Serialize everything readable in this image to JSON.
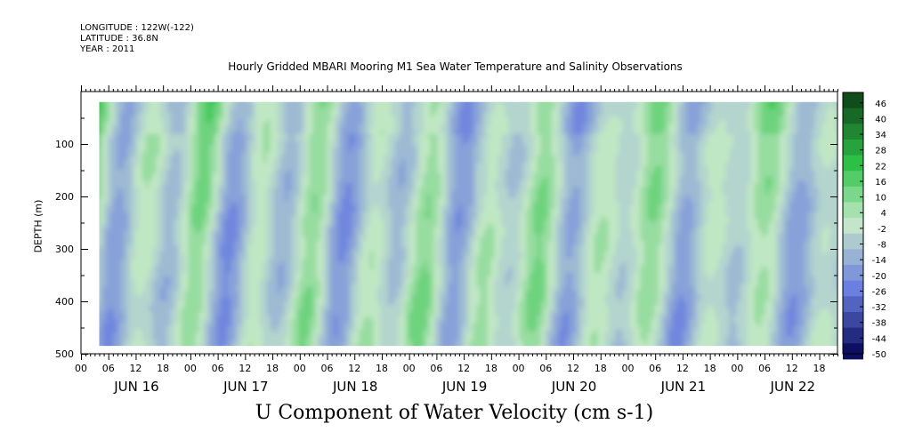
{
  "header": {
    "longitude": "LONGITUDE : 122W(-122)",
    "latitude": "LATITUDE : 36.8N",
    "year": "YEAR : 2011"
  },
  "chart_data": {
    "type": "heatmap",
    "title": "Hourly Gridded MBARI Mooring M1 Sea Water Temperature and Salinity Observations",
    "xlabel": "U Component of Water Velocity (cm s-1)",
    "ylabel": "DEPTH (m)",
    "x_tick_labels": [
      "00",
      "06",
      "12",
      "18",
      "00",
      "06",
      "12",
      "18",
      "00",
      "06",
      "12",
      "18",
      "00",
      "06",
      "12",
      "18",
      "00",
      "06",
      "12",
      "18",
      "00",
      "06",
      "12",
      "18",
      "00",
      "06",
      "12",
      "18"
    ],
    "x_day_labels": [
      "JUN 16",
      "JUN 17",
      "JUN 18",
      "JUN 19",
      "JUN 20",
      "JUN 21",
      "JUN 22"
    ],
    "x_range_hours": [
      0,
      166
    ],
    "y_ticks": [
      100,
      200,
      300,
      400,
      500
    ],
    "ylim": [
      0,
      500
    ],
    "y_inverted": true,
    "data_extent": {
      "start_hour": 4,
      "end_hour": 166,
      "depth_top": 20,
      "depth_bottom": 485
    },
    "colorbar": {
      "labels": [
        "46",
        "40",
        "34",
        "28",
        "22",
        "16",
        "10",
        "4",
        "-2",
        "-8",
        "-14",
        "-20",
        "-26",
        "-32",
        "-38",
        "-44",
        "-50"
      ],
      "min": -50,
      "max": 50,
      "step": 6,
      "color_high": "#0c3f15",
      "color_mid_pos": "#2fc449",
      "color_zero": "#c7e9c9",
      "color_mid_neg": "#6a7fe0",
      "color_low": "#0a0a5c"
    },
    "grid": false
  }
}
